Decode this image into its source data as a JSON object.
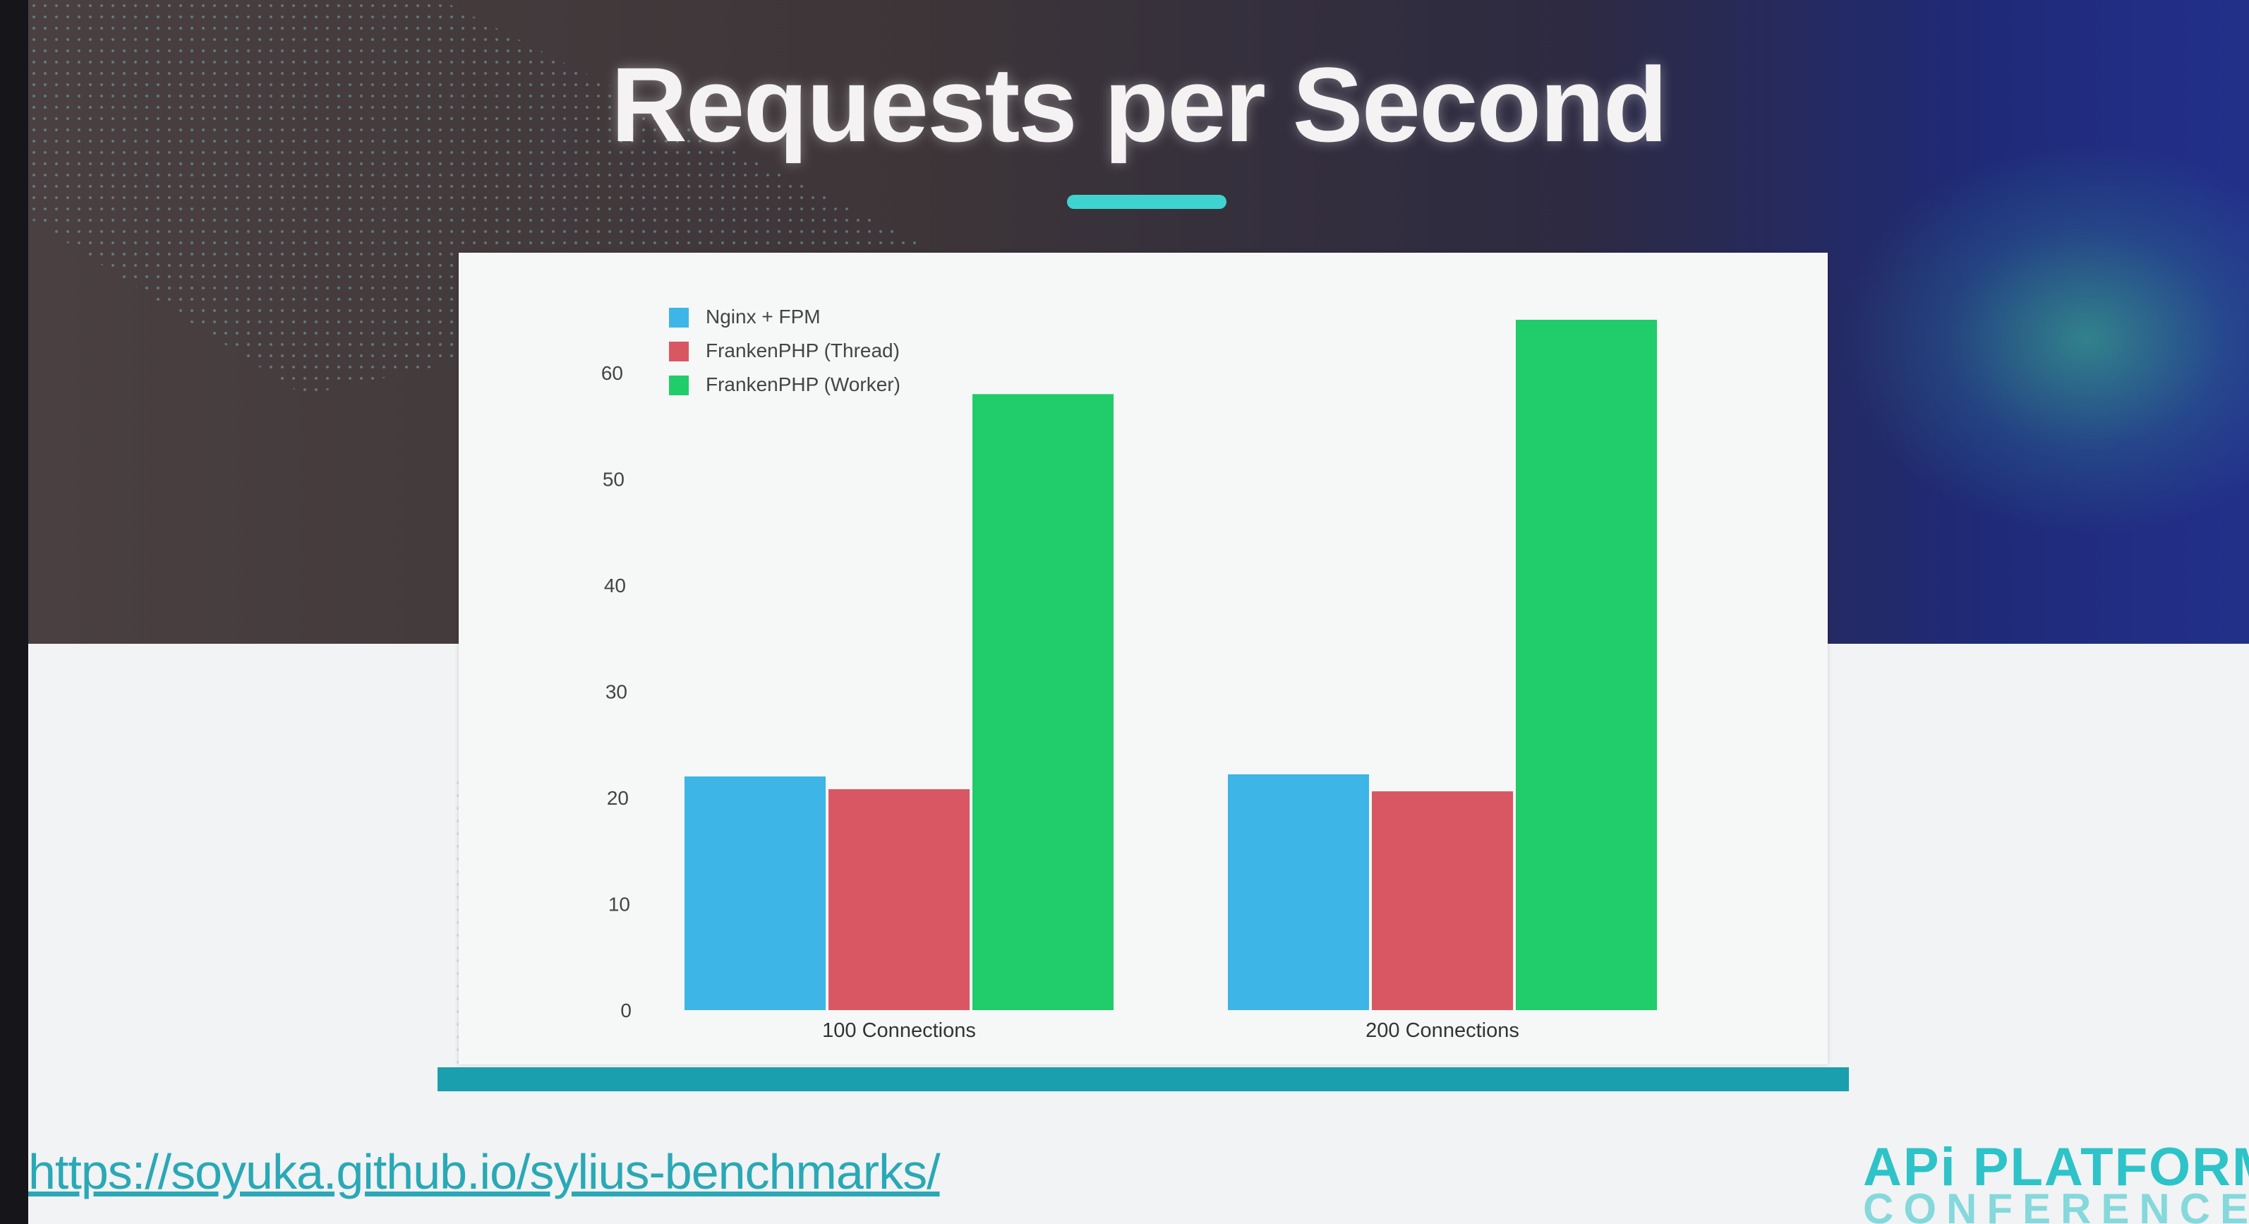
{
  "slide": {
    "title": "Requests per Second",
    "url": "https://soyuka.github.io/sylius-benchmarks/",
    "logo_line1": "APi PLATFORM",
    "logo_line2": "CONFERENCE"
  },
  "colors": {
    "accent": "#3fd3d0",
    "series": [
      "#3db5e6",
      "#d95763",
      "#21cc6a"
    ]
  },
  "chart_data": {
    "type": "bar",
    "title": "",
    "xlabel": "",
    "ylabel": "",
    "categories": [
      "100 Connections",
      "200 Connections"
    ],
    "series": [
      {
        "name": "Nginx + FPM",
        "values": [
          22,
          22.2
        ]
      },
      {
        "name": "FrankenPHP (Thread)",
        "values": [
          20.8,
          20.6
        ]
      },
      {
        "name": "FrankenPHP (Worker)",
        "values": [
          58,
          65
        ]
      }
    ],
    "yticks": [
      0,
      10,
      20,
      30,
      40,
      50,
      60
    ],
    "ylim": [
      0,
      65
    ],
    "grid": false,
    "legend": "top-left"
  }
}
